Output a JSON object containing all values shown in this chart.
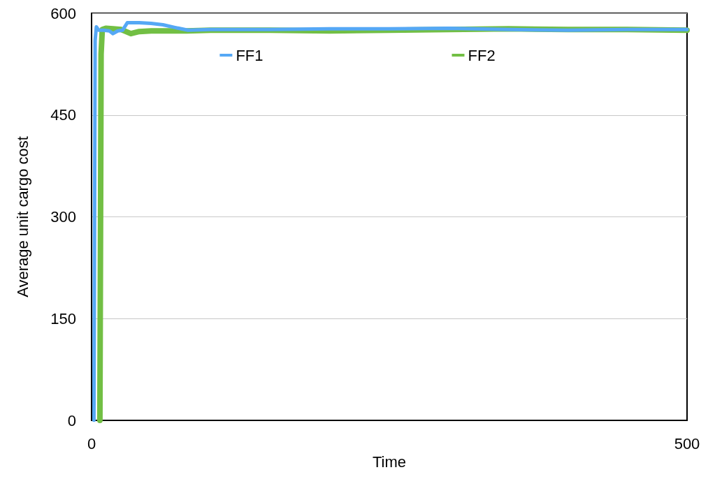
{
  "chart_data": {
    "type": "line",
    "xlabel": "Time",
    "ylabel": "Average unit cargo cost",
    "xlim": [
      0,
      500
    ],
    "xticks": [
      0,
      500
    ],
    "ylim": [
      0,
      600
    ],
    "yticks": [
      0,
      150,
      300,
      450,
      600
    ],
    "grid": "y",
    "legend": "top",
    "marker": "none",
    "line_style": "solid",
    "series": [
      {
        "name": "FF1",
        "color": "#55a8f5",
        "x": [
          2,
          3,
          4,
          6,
          10,
          15,
          18,
          22,
          26,
          30,
          40,
          50,
          60,
          70,
          81,
          100,
          150,
          200,
          250,
          300,
          350,
          400,
          450,
          500
        ],
        "values": [
          0,
          560,
          580,
          575,
          575,
          574,
          570,
          574,
          575,
          586,
          586,
          585,
          583,
          579,
          575,
          576,
          576,
          577,
          577,
          578,
          576,
          575,
          576,
          576
        ]
      },
      {
        "name": "FF2",
        "color": "#72bf44",
        "x": [
          7,
          8,
          9,
          12,
          18,
          25,
          33,
          40,
          50,
          60,
          80,
          100,
          150,
          200,
          250,
          300,
          350,
          400,
          450,
          500
        ],
        "values": [
          0,
          540,
          576,
          578,
          577,
          576,
          570,
          573,
          574,
          574,
          574,
          575,
          575,
          574,
          575,
          576,
          577,
          576,
          576,
          575
        ]
      }
    ]
  }
}
